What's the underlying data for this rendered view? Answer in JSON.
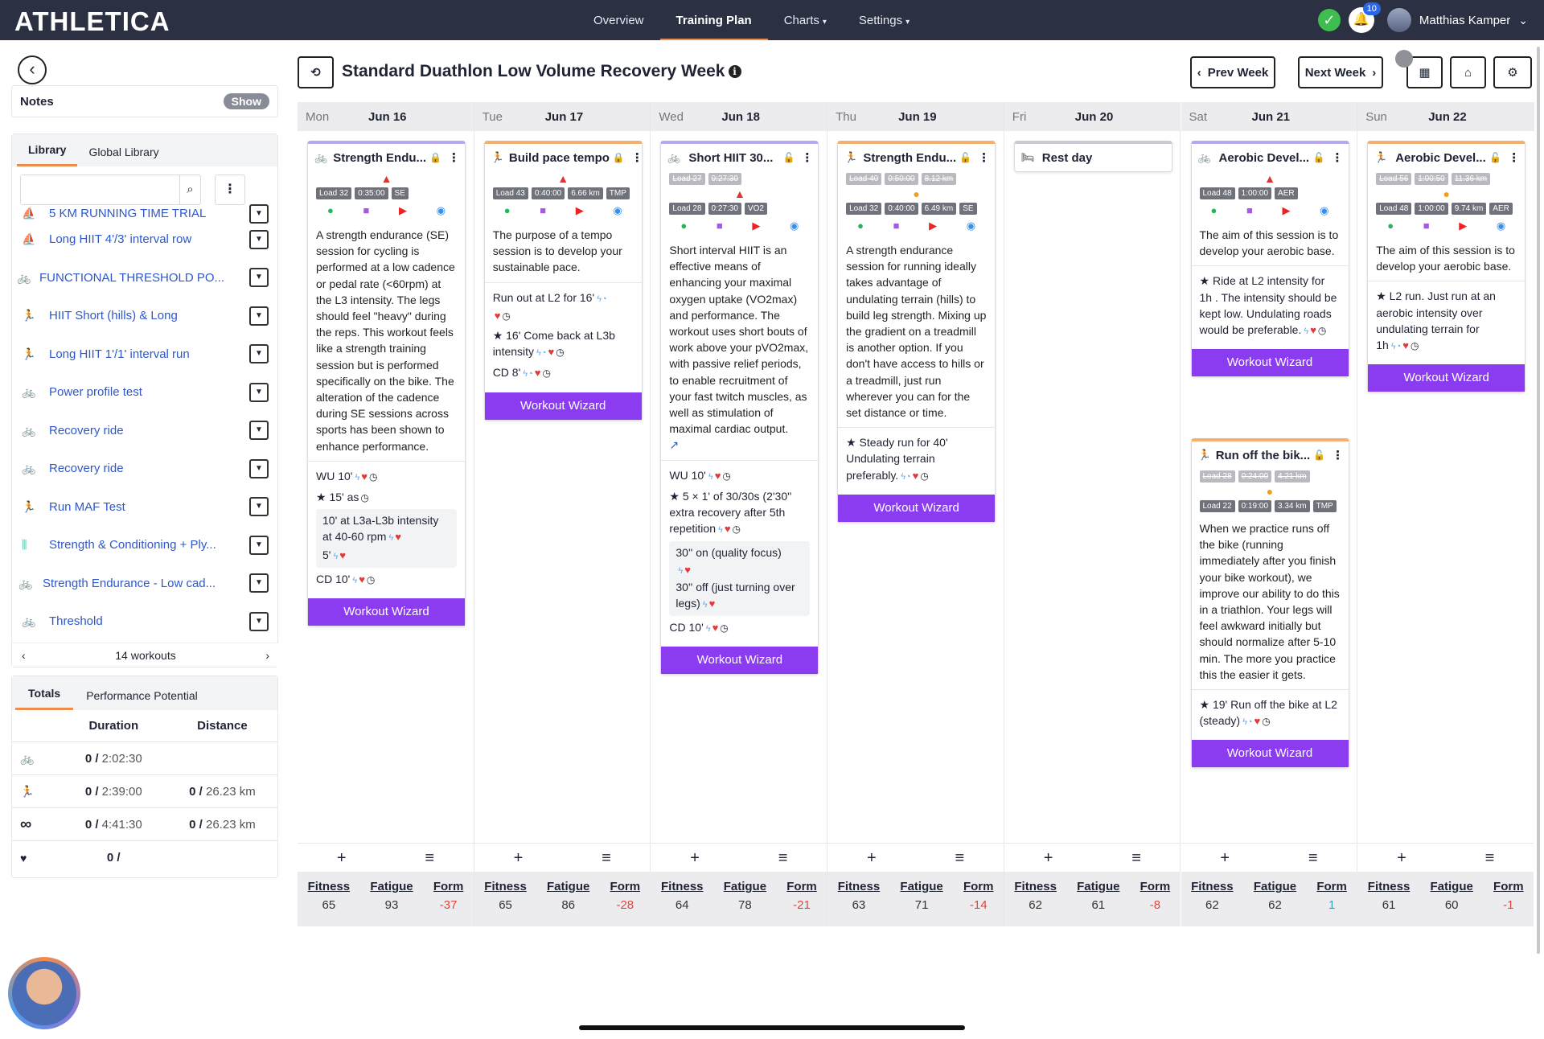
{
  "app": {
    "logo": "ATHLETICA"
  },
  "nav": {
    "links": [
      {
        "label": "Overview",
        "caret": ""
      },
      {
        "label": "Training Plan",
        "caret": ""
      },
      {
        "label": "Charts",
        "caret": "▾"
      },
      {
        "label": "Settings",
        "caret": "▾"
      }
    ],
    "notifications": "10",
    "user": "Matthias Kamper"
  },
  "sidebar": {
    "notes_label": "Notes",
    "show_label": "Show",
    "tabs": [
      "Library",
      "Global Library"
    ],
    "search_placeholder": "",
    "items": [
      {
        "icon": "row",
        "label": "5 KM RUNNING TIME TRIAL"
      },
      {
        "icon": "row",
        "label": "Long HIIT 4'/3' interval row"
      },
      {
        "icon": "bike",
        "label": "FUNCTIONAL THRESHOLD PO..."
      },
      {
        "icon": "run",
        "label": "HIIT Short (hills) & Long"
      },
      {
        "icon": "run",
        "label": "Long HIIT 1'/1' interval run"
      },
      {
        "icon": "bike",
        "label": "Power profile test"
      },
      {
        "icon": "bike",
        "label": "Recovery ride"
      },
      {
        "icon": "bike",
        "label": "Recovery ride"
      },
      {
        "icon": "run",
        "label": "Run MAF Test"
      },
      {
        "icon": "str",
        "label": "Strength & Conditioning + Ply..."
      },
      {
        "icon": "bike",
        "label": "Strength Endurance - Low cad..."
      },
      {
        "icon": "bike",
        "label": "Threshold"
      }
    ],
    "count_label": "14 workouts",
    "totals": {
      "tabs": [
        "Totals",
        "Performance Potential"
      ],
      "headers": [
        "Duration",
        "Distance"
      ],
      "rows": [
        {
          "icon": "bike-icon",
          "glyph": "🚲",
          "dur_done": "0 /",
          "dur_total": "2:02:30",
          "dist_done": "",
          "dist_total": ""
        },
        {
          "icon": "run-icon",
          "glyph": "🏃",
          "dur_done": "0 /",
          "dur_total": "2:39:00",
          "dist_done": "0 /",
          "dist_total": "26.23 km"
        },
        {
          "icon": "infinity-icon",
          "glyph": "∞",
          "dur_done": "0 /",
          "dur_total": "4:41:30",
          "dist_done": "0 /",
          "dist_total": "26.23 km"
        },
        {
          "icon": "heart-rate-icon",
          "glyph": "♥",
          "dur_done": "0 /",
          "dur_total": "",
          "dist_done": "",
          "dist_total": ""
        }
      ]
    }
  },
  "header": {
    "title": "Standard Duathlon Low Volume Recovery Week",
    "prev": "Prev Week",
    "next": "Next Week"
  },
  "wizard_label": "Workout Wizard",
  "stat_labels": [
    "Fitness",
    "Fatigue",
    "Form"
  ],
  "days": [
    {
      "name": "Mon",
      "date": "Jun 16",
      "fitness": "65",
      "fatigue": "93",
      "form": "-37",
      "form_sign": "neg"
    },
    {
      "name": "Tue",
      "date": "Jun 17",
      "fitness": "65",
      "fatigue": "86",
      "form": "-28",
      "form_sign": "neg"
    },
    {
      "name": "Wed",
      "date": "Jun 18",
      "fitness": "64",
      "fatigue": "78",
      "form": "-21",
      "form_sign": "neg"
    },
    {
      "name": "Thu",
      "date": "Jun 19",
      "fitness": "63",
      "fatigue": "71",
      "form": "-14",
      "form_sign": "neg"
    },
    {
      "name": "Fri",
      "date": "Jun 20",
      "fitness": "62",
      "fatigue": "61",
      "form": "-8",
      "form_sign": "neg"
    },
    {
      "name": "Sat",
      "date": "Jun 21",
      "fitness": "62",
      "fatigue": "62",
      "form": "1",
      "form_sign": "pos"
    },
    {
      "name": "Sun",
      "date": "Jun 22",
      "fitness": "61",
      "fatigue": "60",
      "form": "-1",
      "form_sign": "neg"
    }
  ],
  "workouts": {
    "mon": {
      "title": "Strength Endu...",
      "tags": [
        "Load 32",
        "0:35:00",
        "SE"
      ],
      "desc": "A strength endurance (SE) session for cycling is performed at a low cadence or pedal rate (<60rpm) at the L3 intensity. The legs should feel \"heavy\" during the reps. This workout feels like a strength training session but is performed specifically on the bike. The alteration of the cadence during SE sessions across sports has been shown to enhance performance.",
      "s1": "WU 10'",
      "s2": "15' as",
      "s3": "10' at L3a-L3b intensity at 40-60 rpm",
      "s4": "5'",
      "s5": "CD 10'"
    },
    "tue": {
      "title": "Build pace tempo",
      "tags": [
        "Load 43",
        "0:40:00",
        "6.66 km",
        "TMP"
      ],
      "desc": "The purpose of a tempo session is to develop your sustainable pace.",
      "s1": "Run out at L2 for 16'",
      "s2": "16' Come back at L3b intensity",
      "s3": "CD 8'"
    },
    "wed": {
      "title": "Short HIIT 30...",
      "tags_old": [
        "Load 27",
        "0:27:30"
      ],
      "tags": [
        "Load 28",
        "0:27:30",
        "VO2"
      ],
      "desc": "Short interval HIIT is an effective means of enhancing your maximal oxygen uptake (VO2max) and performance. The workout uses short bouts of work above your pVO2max, with passive relief periods, to enable recruitment of your fast twitch muscles, as well as stimulation of maximal cardiac output.",
      "s1": "WU 10'",
      "s2": "5 × 1' of 30/30s (2'30'' extra recovery after 5th repetition",
      "s3": "30'' on (quality focus)",
      "s4": "30'' off (just turning over legs)",
      "s5": "CD 10'"
    },
    "thu": {
      "title": "Strength Endu...",
      "tags_old": [
        "Load 40",
        "0:50:00",
        "8.12 km"
      ],
      "tags": [
        "Load 32",
        "0:40:00",
        "6.49 km",
        "SE"
      ],
      "desc": "A strength endurance session for running ideally takes advantage of undulating terrain (hills) to build leg strength. Mixing up the gradient on a treadmill is another option. If you don't have access to hills or a treadmill, just run wherever you can for the set distance or time.",
      "s1": "Steady run for 40' Undulating terrain preferably."
    },
    "fri": {
      "title": "Rest day"
    },
    "sat1": {
      "title": "Aerobic Devel...",
      "tags": [
        "Load 48",
        "1:00:00",
        "AER"
      ],
      "desc": "The aim of this session is to develop your aerobic base.",
      "s1": "Ride at L2 intensity for 1h . The intensity should be kept low. Undulating roads would be preferable."
    },
    "sat2": {
      "title": "Run off the bik...",
      "tags_old": [
        "Load 28",
        "0:24:00",
        "4.21 km"
      ],
      "tags": [
        "Load 22",
        "0:19:00",
        "3.34 km",
        "TMP"
      ],
      "desc": "When we practice runs off the bike (running immediately after you finish your bike workout), we improve our ability to do this in a triathlon. Your legs will feel awkward initially but should normalize after 5-10 min. The more you practice this the easier it gets.",
      "s1": "19' Run off the bike at L2 (steady)"
    },
    "sun": {
      "title": "Aerobic Devel...",
      "tags_old": [
        "Load 56",
        "1:00:50",
        "11.36 km"
      ],
      "tags": [
        "Load 48",
        "1:00:00",
        "9.74 km",
        "AER"
      ],
      "desc": "The aim of this session is to develop your aerobic base.",
      "s1": "L2 run. Just run at an aerobic intensity over undulating terrain for 1h"
    }
  }
}
